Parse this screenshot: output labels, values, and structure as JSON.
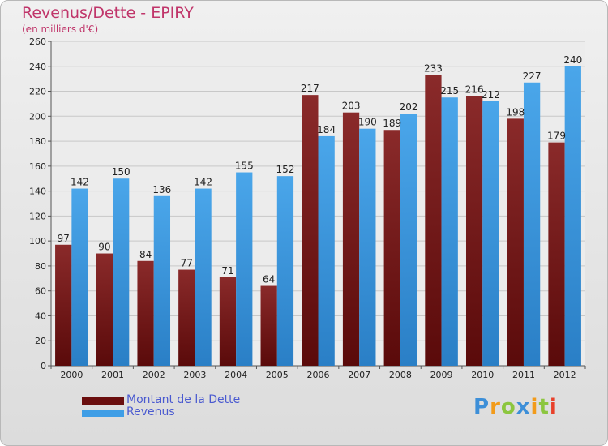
{
  "chart_data": {
    "type": "bar",
    "title": "Revenus/Dette - EPIRY",
    "subtitle": "(en milliers d'€)",
    "xlabel": "",
    "ylabel": "",
    "categories": [
      "2000",
      "2001",
      "2002",
      "2003",
      "2004",
      "2005",
      "2006",
      "2007",
      "2008",
      "2009",
      "2010",
      "2011",
      "2012"
    ],
    "series": [
      {
        "name": "Montant de la Dette",
        "color": "#7a1a1a",
        "values": [
          97,
          90,
          84,
          77,
          71,
          64,
          217,
          203,
          189,
          233,
          216,
          198,
          179
        ]
      },
      {
        "name": "Revenus",
        "color": "#3f9ee6",
        "values": [
          142,
          150,
          136,
          142,
          155,
          152,
          184,
          190,
          202,
          215,
          212,
          227,
          240
        ]
      }
    ],
    "ylim": [
      0,
      260
    ],
    "yticks": [
      0,
      20,
      40,
      60,
      80,
      100,
      120,
      140,
      160,
      180,
      200,
      220,
      240,
      260
    ],
    "grid": true,
    "legend_position": "bottom-left"
  },
  "logo": {
    "letters": [
      "P",
      "r",
      "o",
      "x",
      "i",
      "t",
      "i"
    ],
    "colors": [
      "#3d8fd8",
      "#f29b1a",
      "#8cc63f",
      "#3d8fd8",
      "#f29b1a",
      "#8cc63f",
      "#e8402a"
    ]
  }
}
